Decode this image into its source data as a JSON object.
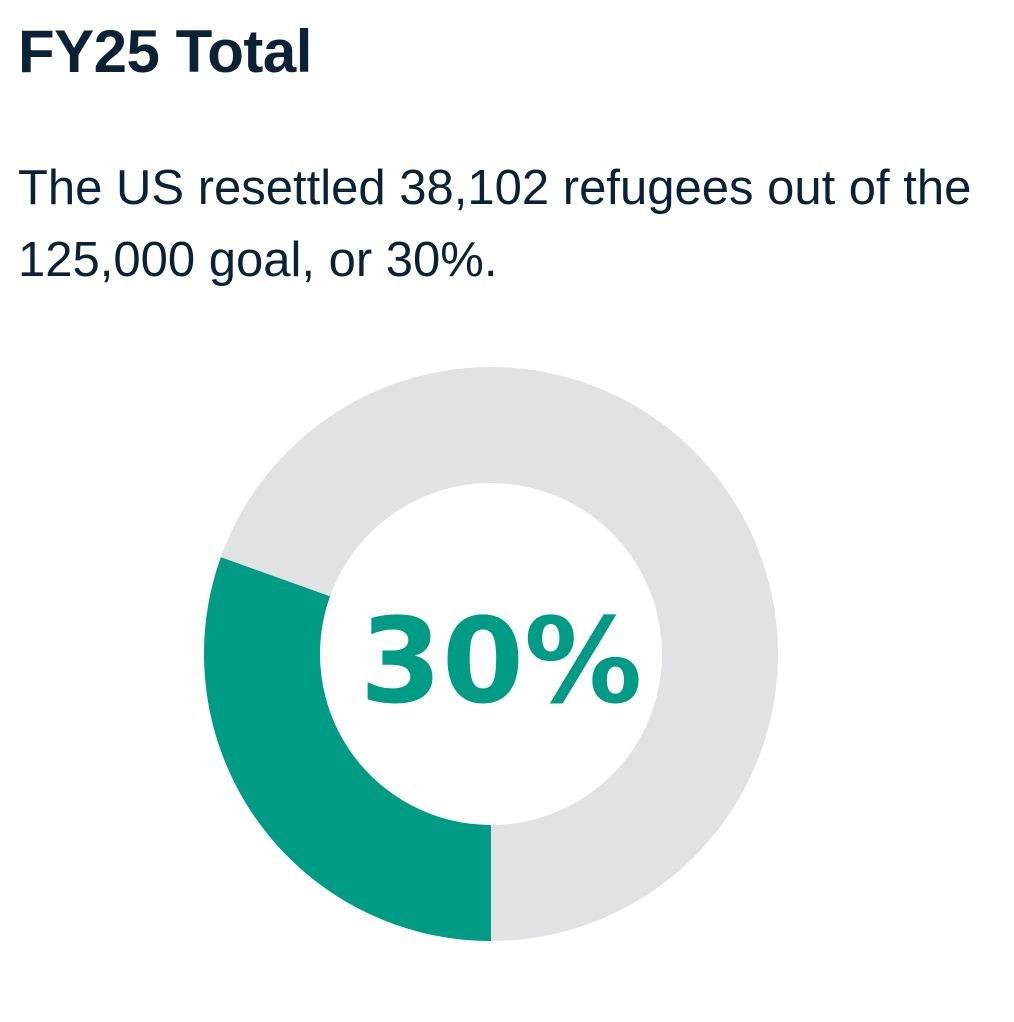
{
  "header": {
    "title": "FY25 Total",
    "summary": "The US resettled 38,102 refugees out of the 125,000 goal, or 30%."
  },
  "chart_data": {
    "type": "pie",
    "title": "FY25 Total",
    "center_label": "30%",
    "slices": [
      {
        "value": 38102,
        "color": "#009b84"
      },
      {
        "value": 86898,
        "color": "#e1e2e3"
      }
    ],
    "total": 125000,
    "percent": 30,
    "colors": {
      "resettled": "#009b84",
      "remaining": "#e1e2e3",
      "label": "#009b84"
    }
  }
}
